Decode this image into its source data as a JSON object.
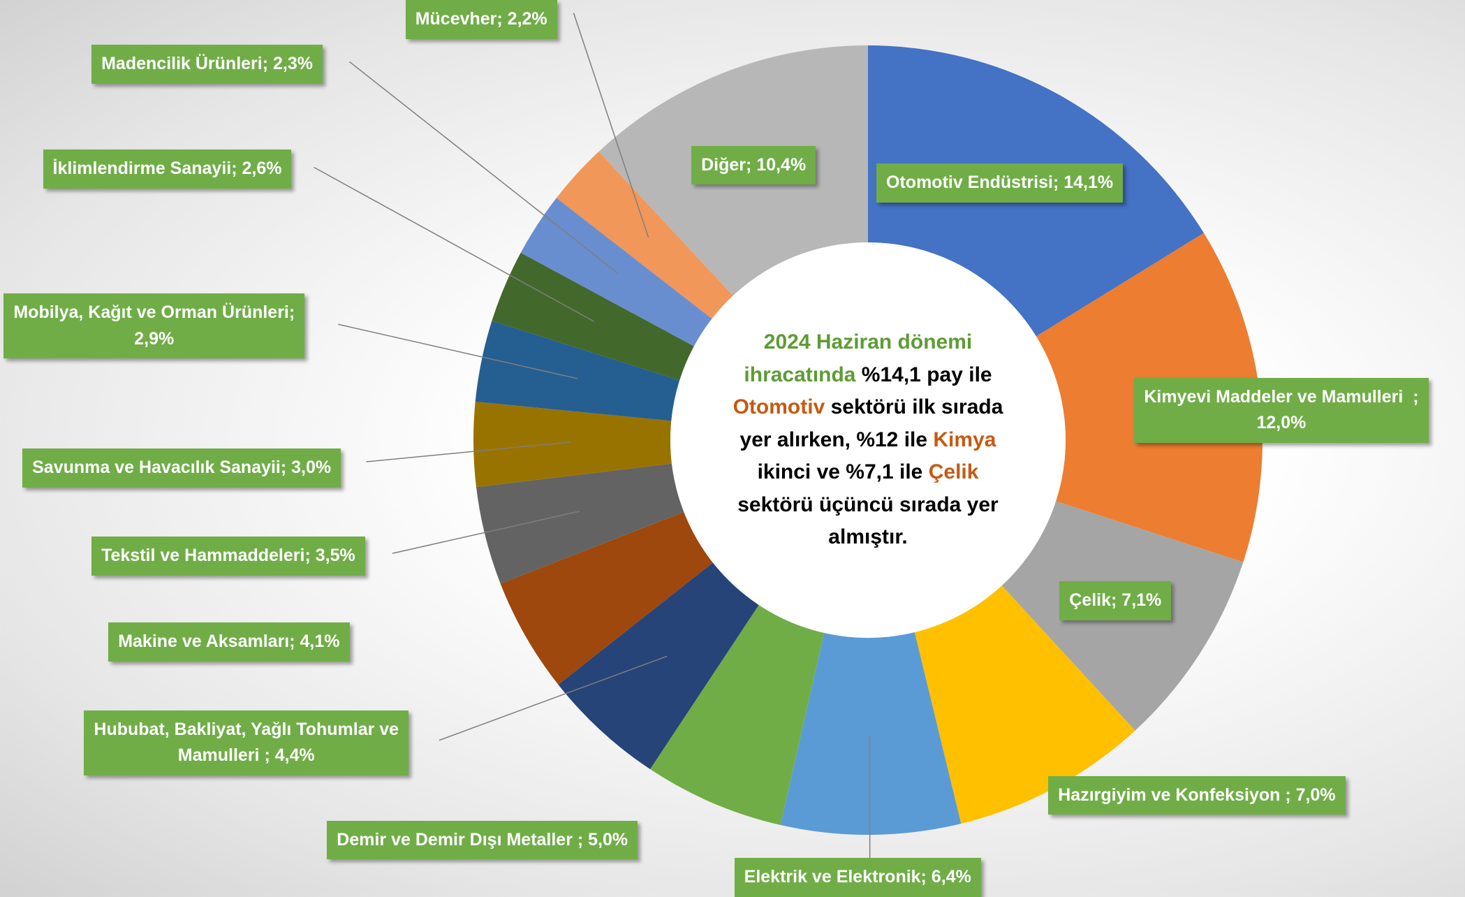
{
  "chart_data": {
    "type": "pie",
    "donut": true,
    "categories": [
      "Otomotiv Endüstrisi; 14,1%",
      "Kimyevi Maddeler ve Mamulleri  ;\n12,0%",
      "Çelik; 7,1%",
      "Hazırgiyim ve Konfeksiyon ; 7,0%",
      "Elektrik ve Elektronik; 6,4%",
      "Demir ve Demir Dışı Metaller ; 5,0%",
      "Hububat, Bakliyat, Yağlı Tohumlar ve\nMamulleri ; 4,4%",
      "Makine ve Aksamları; 4,1%",
      "Tekstil ve Hammaddeleri; 3,5%",
      "Savunma ve Havacılık Sanayii; 3,0%",
      "Mobilya, Kağıt ve Orman Ürünleri;\n2,9%",
      "İklimlendirme Sanayii; 2,6%",
      "Madencilik Ürünleri; 2,3%",
      "Mücevher; 2,2%",
      "Diğer; 10,4%"
    ],
    "values": [
      14.1,
      12.0,
      7.1,
      7.0,
      6.4,
      5.0,
      4.4,
      4.1,
      3.5,
      3.0,
      2.9,
      2.6,
      2.3,
      2.2,
      10.4
    ],
    "colors": [
      "#4472C4",
      "#ED7D31",
      "#A5A5A5",
      "#FFC000",
      "#5B9BD5",
      "#70AD47",
      "#264478",
      "#9E480E",
      "#636363",
      "#997300",
      "#255E91",
      "#43682B",
      "#698ED0",
      "#F1975A",
      "#B7B7B7"
    ],
    "center_text": [
      {
        "text": "2024 Haziran dönemi ihracatında",
        "color": "#5E9B35"
      },
      {
        "text": " %14,1 pay ile ",
        "color": "#000000"
      },
      {
        "text": "Otomotiv",
        "color": "#C55A11"
      },
      {
        "text": " sektörü ilk sırada yer alırken, %12 ile ",
        "color": "#000000"
      },
      {
        "text": "Kimya",
        "color": "#C55A11"
      },
      {
        "text": " ikinci ve %7,1 ile ",
        "color": "#000000"
      },
      {
        "text": "Çelik",
        "color": "#C55A11"
      },
      {
        "text": " sektörü üçüncü sırada yer almıştır.",
        "color": "#000000"
      }
    ]
  }
}
